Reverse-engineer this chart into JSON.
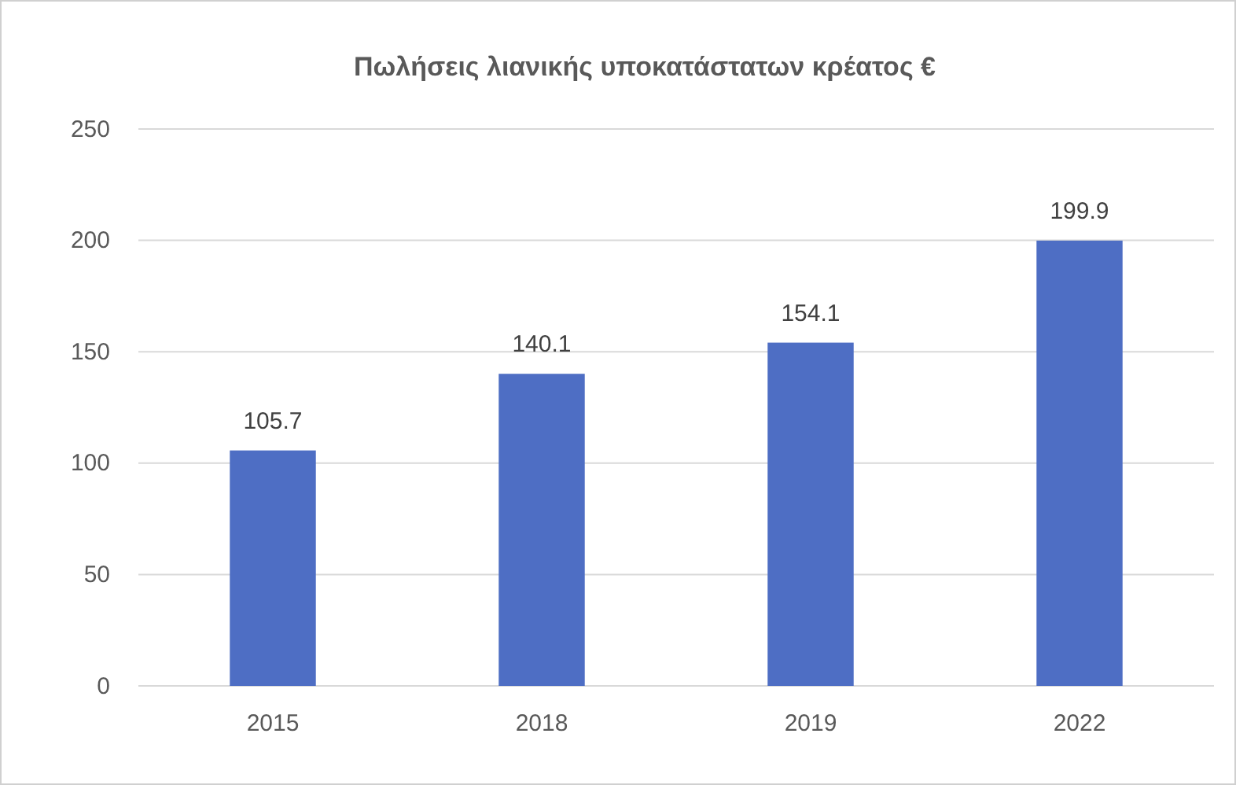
{
  "chart_data": {
    "type": "bar",
    "title": "Πωλήσεις λιανικής υποκατάστατων κρέατος  €",
    "categories": [
      "2015",
      "2018",
      "2019",
      "2022"
    ],
    "values": [
      105.7,
      140.1,
      154.1,
      199.9
    ],
    "color": "#4e6ec4",
    "ylim": [
      0,
      250
    ],
    "yticks": [
      0,
      50,
      100,
      150,
      200,
      250
    ],
    "grid": "y",
    "data_labels": true
  }
}
